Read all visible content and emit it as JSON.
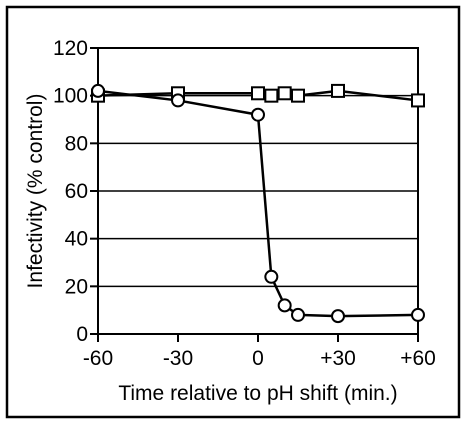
{
  "chart_data": {
    "type": "line",
    "title": "",
    "xlabel": "Time relative to pH shift (min.)",
    "ylabel": "Infectivity (% control)",
    "xlim": [
      -60,
      60
    ],
    "ylim": [
      0,
      120
    ],
    "x_ticks": [
      -60,
      -30,
      0,
      30,
      60
    ],
    "x_tick_labels": [
      "-60",
      "-30",
      "0",
      "+30",
      "+60"
    ],
    "y_ticks": [
      0,
      20,
      40,
      60,
      80,
      100,
      120
    ],
    "y_tick_labels": [
      "0",
      "20",
      "40",
      "60",
      "80",
      "100",
      "120"
    ],
    "grid": "horizontal",
    "legend": "none",
    "series": [
      {
        "marker": "square",
        "x": [
          -60,
          -30,
          0,
          5,
          10,
          15,
          30,
          60
        ],
        "y": [
          100,
          101,
          101,
          100,
          101,
          100,
          102,
          98
        ]
      },
      {
        "marker": "circle",
        "x": [
          -60,
          -30,
          0,
          5,
          10,
          15,
          30,
          60
        ],
        "y": [
          102,
          98,
          92,
          24,
          12,
          8,
          7.5,
          8
        ]
      }
    ],
    "colors": {
      "line": "#000000",
      "marker_fill": "#ffffff",
      "background": "#ffffff"
    }
  }
}
